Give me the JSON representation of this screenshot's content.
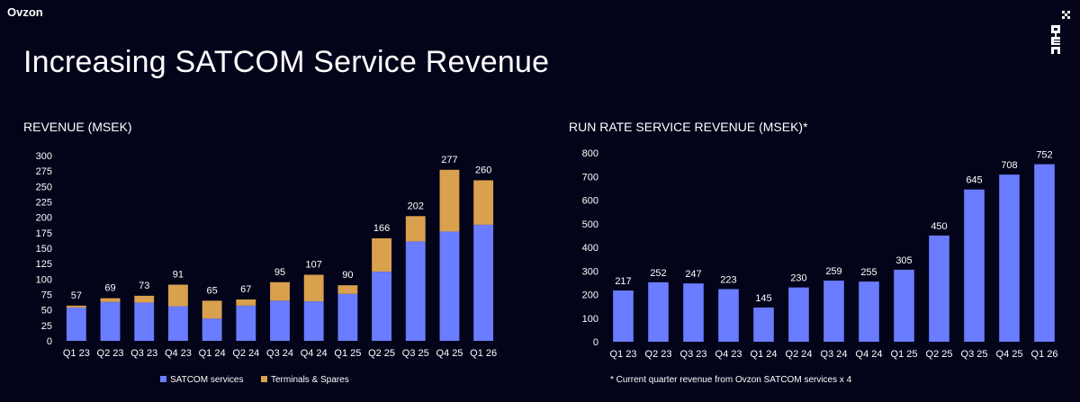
{
  "header": {
    "brand": "Ovzon",
    "title": "Increasing SATCOM Service Revenue"
  },
  "colors": {
    "background": "#03031a",
    "satcom": "#6a7cff",
    "terminals": "#d9a04e",
    "text": "#ffffff"
  },
  "chart_data": [
    {
      "type": "bar",
      "stacked": true,
      "title": "REVENUE (MSEK)",
      "categories": [
        "Q1 23",
        "Q2 23",
        "Q3 23",
        "Q4 23",
        "Q1 24",
        "Q2 24",
        "Q3 24",
        "Q4 24",
        "Q1 25",
        "Q2 25",
        "Q3 25",
        "Q4 25",
        "Q1 26"
      ],
      "series": [
        {
          "name": "SATCOM services",
          "values": [
            54,
            63,
            62,
            56,
            36,
            57,
            65,
            64,
            76,
            112,
            161,
            177,
            188
          ]
        },
        {
          "name": "Terminals & Spares",
          "values": [
            3,
            6,
            11,
            35,
            29,
            10,
            30,
            43,
            14,
            54,
            41,
            100,
            72
          ]
        }
      ],
      "totals": [
        57,
        69,
        73,
        91,
        65,
        67,
        95,
        107,
        90,
        166,
        202,
        277,
        260
      ],
      "yticks": [
        0,
        25,
        50,
        75,
        100,
        125,
        150,
        175,
        200,
        225,
        250,
        275,
        300
      ],
      "ylim": [
        0,
        300
      ],
      "legend": "bottom",
      "grid": false
    },
    {
      "type": "bar",
      "title": "RUN RATE SERVICE REVENUE (MSEK)*",
      "categories": [
        "Q1 23",
        "Q2 23",
        "Q3 23",
        "Q4 23",
        "Q1 24",
        "Q2 24",
        "Q3 24",
        "Q4 24",
        "Q1 25",
        "Q2 25",
        "Q3 25",
        "Q4 25",
        "Q1 26"
      ],
      "values": [
        217,
        252,
        247,
        223,
        145,
        230,
        259,
        255,
        305,
        450,
        645,
        708,
        752
      ],
      "yticks": [
        0,
        100,
        200,
        300,
        400,
        500,
        600,
        700,
        800
      ],
      "ylim": [
        0,
        800
      ],
      "grid": false,
      "footnote": "* Current quarter revenue from Ovzon SATCOM services x 4"
    }
  ]
}
